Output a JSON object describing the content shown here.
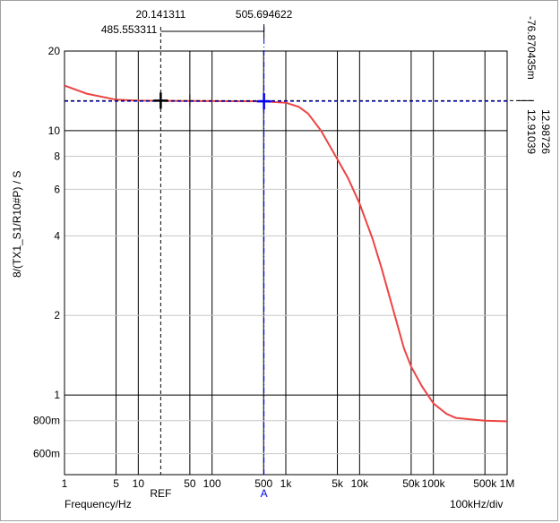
{
  "chart_data": {
    "type": "line",
    "xscale": "log",
    "yscale": "log",
    "xlim": [
      1,
      1000000
    ],
    "ylim": [
      0.5,
      20
    ],
    "grid": true,
    "xlabel": "Frequency/Hz",
    "ylabel": "8/(TX1_S1/R10#P)  / S",
    "x_scale_label": "100kHz/div",
    "x_ticks": [
      {
        "v": 1,
        "label": "1"
      },
      {
        "v": 5,
        "label": "5"
      },
      {
        "v": 10,
        "label": "10"
      },
      {
        "v": 50,
        "label": "50"
      },
      {
        "v": 100,
        "label": "100"
      },
      {
        "v": 500,
        "label": "500"
      },
      {
        "v": 1000,
        "label": "1k"
      },
      {
        "v": 5000,
        "label": "5k"
      },
      {
        "v": 10000,
        "label": "10k"
      },
      {
        "v": 50000,
        "label": "50k"
      },
      {
        "v": 100000,
        "label": "100k"
      },
      {
        "v": 500000,
        "label": "500k"
      },
      {
        "v": 1000000,
        "label": "1M"
      }
    ],
    "y_ticks": [
      {
        "v": 20,
        "label": "20"
      },
      {
        "v": 10,
        "label": "10"
      },
      {
        "v": 8,
        "label": "8"
      },
      {
        "v": 6,
        "label": "6"
      },
      {
        "v": 4,
        "label": "4"
      },
      {
        "v": 2,
        "label": "2"
      },
      {
        "v": 1,
        "label": "1"
      },
      {
        "v": 0.8,
        "label": "800m"
      },
      {
        "v": 0.6,
        "label": "600m"
      }
    ],
    "series": [
      {
        "color": "#ee4444",
        "points": [
          [
            1,
            14.8
          ],
          [
            2,
            13.8
          ],
          [
            5,
            13.1
          ],
          [
            10,
            12.98
          ],
          [
            20,
            12.96
          ],
          [
            50,
            12.94
          ],
          [
            100,
            12.93
          ],
          [
            200,
            12.92
          ],
          [
            500,
            12.91
          ],
          [
            1000,
            12.75
          ],
          [
            1500,
            12.3
          ],
          [
            2000,
            11.6
          ],
          [
            3000,
            10.0
          ],
          [
            5000,
            7.8
          ],
          [
            7000,
            6.6
          ],
          [
            10000,
            5.3
          ],
          [
            15000,
            3.9
          ],
          [
            20000,
            3.0
          ],
          [
            30000,
            2.0
          ],
          [
            40000,
            1.5
          ],
          [
            50000,
            1.28
          ],
          [
            70000,
            1.08
          ],
          [
            100000,
            0.93
          ],
          [
            150000,
            0.85
          ],
          [
            200000,
            0.82
          ],
          [
            500000,
            0.8
          ],
          [
            1000000,
            0.795
          ]
        ]
      }
    ],
    "cursors": {
      "ref": {
        "x": 20.141311,
        "y": 12.98726,
        "label": "REF",
        "color": "#000000"
      },
      "a": {
        "x": 505.694622,
        "y": 12.91039,
        "label": "A",
        "color": "#0000ee"
      },
      "top_labels": [
        "20.141311",
        "505.694622",
        "485.553311"
      ],
      "right_labels": [
        "12.98726",
        "12.91039",
        "-76.870435m"
      ],
      "extra_markers_x": [
        50
      ]
    }
  }
}
